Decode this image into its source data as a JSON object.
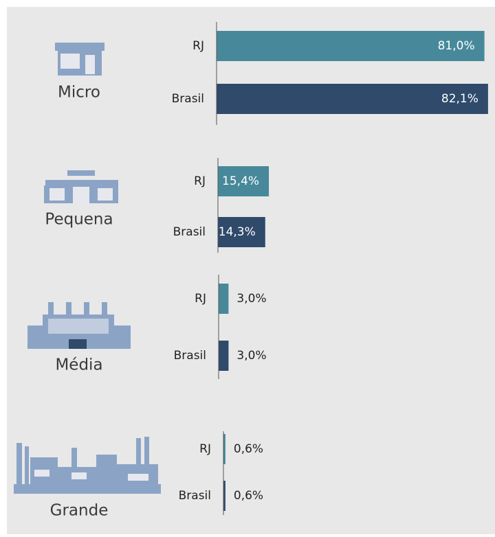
{
  "chart_data": {
    "type": "bar",
    "categories": [
      "Micro",
      "Pequena",
      "Média",
      "Grande"
    ],
    "series": [
      {
        "name": "RJ",
        "color": "#47899a",
        "values": [
          81.0,
          15.4,
          3.0,
          0.6
        ],
        "value_labels": [
          "81,0%",
          "15,4%",
          "3,0%",
          "0,6%"
        ]
      },
      {
        "name": "Brasil",
        "color": "#2f4a6a",
        "values": [
          82.1,
          14.3,
          3.0,
          0.6
        ],
        "value_labels": [
          "82,1%",
          "14,3%",
          "3,0%",
          "0,6%"
        ]
      }
    ]
  }
}
